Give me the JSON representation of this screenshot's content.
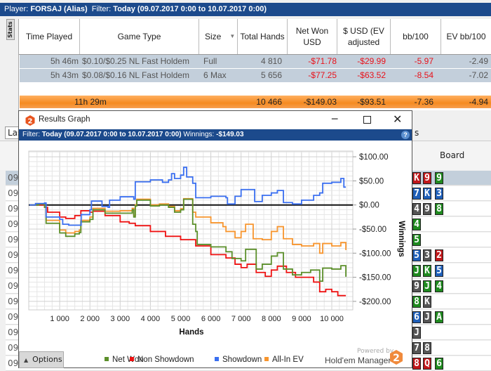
{
  "topbar": {
    "player_label": "Player:",
    "player": "FORSAJ (Alias)",
    "filter_label": "Filter:",
    "filter": "Today (09.07.2017 0:00 to 10.07.2017 0:00)"
  },
  "stats_tab": "Stats",
  "table": {
    "headers": [
      "Time Played",
      "Game Type",
      "Size",
      "Total Hands",
      "Net Won USD",
      "$ USD (EV adjusted",
      "bb/100",
      "EV bb/100"
    ],
    "rows": [
      {
        "time": "5h 46m",
        "game": "$0.10/$0.25 NL Fast Holdem",
        "size": "Full",
        "hands": "4 810",
        "net": "-$71.78",
        "ev": "-$29.99",
        "bb": "-5.97",
        "evbb": "-2.49"
      },
      {
        "time": "5h 43m",
        "game": "$0.08/$0.16 NL Fast Holdem",
        "size": "6 Max",
        "hands": "5 656",
        "net": "-$77.25",
        "ev": "-$63.52",
        "bb": "-8.54",
        "evbb": "-7.02"
      }
    ],
    "summary": {
      "time": "11h 29m",
      "hands": "10 466",
      "net": "-$149.03",
      "ev": "-$93.51",
      "bb": "-7.36",
      "evbb": "-4.94"
    }
  },
  "lower": {
    "select_value": "Las",
    "partial_text": "s",
    "board_header": "Board",
    "row_prefix": "09.",
    "boards": [
      [
        [
          "K",
          "#c0171b"
        ],
        [
          "9",
          "#c0171b"
        ],
        [
          "9",
          "#1f8a1f"
        ]
      ],
      [
        [
          "7",
          "#1f5fb8"
        ],
        [
          "K",
          "#1f5fb8"
        ],
        [
          "3",
          "#1f5fb8"
        ]
      ],
      [
        [
          "4",
          "#555555"
        ],
        [
          "9",
          "#555555"
        ],
        [
          "8",
          "#1f8a1f"
        ]
      ],
      [
        [
          "4",
          "#1f8a1f"
        ]
      ],
      [
        [
          "5",
          "#1f8a1f"
        ]
      ],
      [
        [
          "5",
          "#1f5fb8"
        ],
        [
          "3",
          "#555555"
        ],
        [
          "2",
          "#c0171b"
        ]
      ],
      [
        [
          "J",
          "#1f8a1f"
        ],
        [
          "K",
          "#1f8a1f"
        ],
        [
          "5",
          "#1f5fb8"
        ]
      ],
      [
        [
          "9",
          "#555555"
        ],
        [
          "J",
          "#1f8a1f"
        ],
        [
          "4",
          "#1f8a1f"
        ]
      ],
      [
        [
          "8",
          "#1f8a1f"
        ],
        [
          "K",
          "#555555"
        ]
      ],
      [
        [
          "6",
          "#1f5fb8"
        ],
        [
          "J",
          "#555555"
        ],
        [
          "A",
          "#1f8a1f"
        ]
      ],
      [
        [
          "J",
          "#555555"
        ]
      ],
      [
        [
          "7",
          "#555555"
        ],
        [
          "8",
          "#555555"
        ]
      ],
      [
        [
          "8",
          "#c0171b"
        ],
        [
          "Q",
          "#c0171b"
        ],
        [
          "6",
          "#1f8a1f"
        ]
      ]
    ]
  },
  "graph_window": {
    "title": "Results Graph",
    "filter_label": "Filter:",
    "filter": "Today (09.07.2017 0:00 to 10.07.2017 0:00)",
    "winnings_label": "Winnings:",
    "winnings": "-$149.03",
    "options": "Options",
    "powered_by": "Powered by",
    "brand": "Hold'em Manager",
    "logo_text": "2"
  },
  "chart_data": {
    "type": "line",
    "xlabel": "Hands",
    "ylabel": "Winnings",
    "xlim": [
      0,
      10700
    ],
    "ylim": [
      -215,
      110
    ],
    "x_ticks": [
      1000,
      2000,
      3000,
      4000,
      5000,
      6000,
      7000,
      8000,
      9000,
      10000
    ],
    "x_tick_labels": [
      "1 000",
      "2 000",
      "3 000",
      "4 000",
      "5 000",
      "6 000",
      "7 000",
      "8 000",
      "9 000",
      "10 000"
    ],
    "y_ticks": [
      100,
      50,
      0,
      -50,
      -100,
      -150,
      -200
    ],
    "y_tick_labels": [
      "$100.00",
      "$50.00",
      "$0.00",
      "-$50.00",
      "-$100.00",
      "-$150.00",
      "-$200.00"
    ],
    "grid": true,
    "legend": "bottom",
    "series": [
      {
        "name": "Net Won",
        "color": "#5b8f2a",
        "points": [
          [
            0,
            0
          ],
          [
            300,
            2
          ],
          [
            500,
            -5
          ],
          [
            550,
            -38
          ],
          [
            1000,
            -58
          ],
          [
            1200,
            -65
          ],
          [
            1500,
            -60
          ],
          [
            1650,
            -57
          ],
          [
            1700,
            -35
          ],
          [
            2000,
            -30
          ],
          [
            2100,
            -10
          ],
          [
            2500,
            -17
          ],
          [
            3000,
            -17
          ],
          [
            3400,
            -10
          ],
          [
            3450,
            -25
          ],
          [
            3500,
            -2
          ],
          [
            3550,
            10
          ],
          [
            4000,
            -2
          ],
          [
            4300,
            0
          ],
          [
            4600,
            -5
          ],
          [
            4800,
            -15
          ],
          [
            5000,
            -10
          ],
          [
            5100,
            12
          ],
          [
            5400,
            -40
          ],
          [
            5500,
            -55
          ],
          [
            5550,
            -82
          ],
          [
            6000,
            -87
          ],
          [
            6500,
            -97
          ],
          [
            6700,
            -111
          ],
          [
            7000,
            -116
          ],
          [
            7150,
            -92
          ],
          [
            7500,
            -133
          ],
          [
            7700,
            -123
          ],
          [
            8000,
            -106
          ],
          [
            8200,
            -99
          ],
          [
            8400,
            -133
          ],
          [
            8700,
            -145
          ],
          [
            9000,
            -140
          ],
          [
            9300,
            -135
          ],
          [
            9600,
            -158
          ],
          [
            9700,
            -131
          ],
          [
            10000,
            -133
          ],
          [
            10300,
            -126
          ],
          [
            10466,
            -149
          ]
        ]
      },
      {
        "name": "Non Showdown",
        "color": "#ee1111",
        "points": [
          [
            0,
            0
          ],
          [
            500,
            -5
          ],
          [
            600,
            -15
          ],
          [
            1000,
            -25
          ],
          [
            1200,
            -28
          ],
          [
            1500,
            -22
          ],
          [
            1700,
            -12
          ],
          [
            2000,
            -15
          ],
          [
            2100,
            -13
          ],
          [
            2500,
            -22
          ],
          [
            3000,
            -35
          ],
          [
            3300,
            -38
          ],
          [
            3500,
            -43
          ],
          [
            4000,
            -55
          ],
          [
            4500,
            -65
          ],
          [
            5000,
            -72
          ],
          [
            5500,
            -85
          ],
          [
            6000,
            -103
          ],
          [
            6500,
            -110
          ],
          [
            6800,
            -123
          ],
          [
            7000,
            -130
          ],
          [
            7200,
            -123
          ],
          [
            7500,
            -140
          ],
          [
            7800,
            -148
          ],
          [
            8000,
            -135
          ],
          [
            8200,
            -127
          ],
          [
            8500,
            -140
          ],
          [
            8800,
            -150
          ],
          [
            9000,
            -150
          ],
          [
            9400,
            -160
          ],
          [
            9600,
            -180
          ],
          [
            9800,
            -175
          ],
          [
            10000,
            -180
          ],
          [
            10200,
            -188
          ],
          [
            10466,
            -188
          ]
        ]
      },
      {
        "name": "Showdown",
        "color": "#3a6ff0",
        "points": [
          [
            0,
            0
          ],
          [
            200,
            3
          ],
          [
            500,
            4
          ],
          [
            550,
            -25
          ],
          [
            1000,
            -30
          ],
          [
            1100,
            -40
          ],
          [
            1300,
            -42
          ],
          [
            1700,
            -42
          ],
          [
            1710,
            -20
          ],
          [
            2000,
            -10
          ],
          [
            2050,
            8
          ],
          [
            2300,
            8
          ],
          [
            2400,
            -3
          ],
          [
            2600,
            -5
          ],
          [
            2650,
            10
          ],
          [
            3000,
            17
          ],
          [
            3300,
            17
          ],
          [
            3450,
            12
          ],
          [
            3500,
            48
          ],
          [
            4000,
            52
          ],
          [
            4400,
            47
          ],
          [
            4600,
            52
          ],
          [
            4700,
            65
          ],
          [
            4800,
            55
          ],
          [
            5000,
            62
          ],
          [
            5100,
            78
          ],
          [
            5200,
            58
          ],
          [
            5400,
            45
          ],
          [
            5500,
            15
          ],
          [
            6000,
            18
          ],
          [
            6500,
            15
          ],
          [
            6550,
            2
          ],
          [
            6700,
            2
          ],
          [
            6800,
            18
          ],
          [
            7000,
            32
          ],
          [
            7400,
            32
          ],
          [
            7450,
            7
          ],
          [
            7700,
            20
          ],
          [
            8000,
            25
          ],
          [
            8200,
            30
          ],
          [
            8400,
            5
          ],
          [
            8700,
            2
          ],
          [
            9000,
            10
          ],
          [
            9400,
            20
          ],
          [
            9600,
            25
          ],
          [
            9700,
            45
          ],
          [
            10000,
            47
          ],
          [
            10300,
            55
          ],
          [
            10400,
            37
          ],
          [
            10466,
            37
          ]
        ]
      },
      {
        "name": "All-In EV",
        "color": "#f7952e",
        "points": [
          [
            0,
            0
          ],
          [
            300,
            2
          ],
          [
            500,
            -4
          ],
          [
            550,
            -32
          ],
          [
            1000,
            -52
          ],
          [
            1200,
            -58
          ],
          [
            1500,
            -55
          ],
          [
            1650,
            -52
          ],
          [
            1700,
            -32
          ],
          [
            2000,
            -25
          ],
          [
            2100,
            -7
          ],
          [
            2500,
            -13
          ],
          [
            3000,
            -12
          ],
          [
            3400,
            -7
          ],
          [
            3450,
            -22
          ],
          [
            3500,
            0
          ],
          [
            3550,
            12
          ],
          [
            4000,
            0
          ],
          [
            4300,
            2
          ],
          [
            4600,
            -3
          ],
          [
            4800,
            -12
          ],
          [
            5000,
            -8
          ],
          [
            5100,
            13
          ],
          [
            5400,
            -15
          ],
          [
            5500,
            -25
          ],
          [
            6000,
            -37
          ],
          [
            6400,
            -45
          ],
          [
            6500,
            -55
          ],
          [
            6800,
            -68
          ],
          [
            7000,
            -55
          ],
          [
            7150,
            -40
          ],
          [
            7400,
            -70
          ],
          [
            7700,
            -72
          ],
          [
            8000,
            -55
          ],
          [
            8200,
            -45
          ],
          [
            8400,
            -70
          ],
          [
            8700,
            -82
          ],
          [
            9000,
            -85
          ],
          [
            9400,
            -80
          ],
          [
            9600,
            -100
          ],
          [
            9700,
            -80
          ],
          [
            10000,
            -85
          ],
          [
            10300,
            -78
          ],
          [
            10466,
            -93.5
          ]
        ]
      }
    ]
  }
}
